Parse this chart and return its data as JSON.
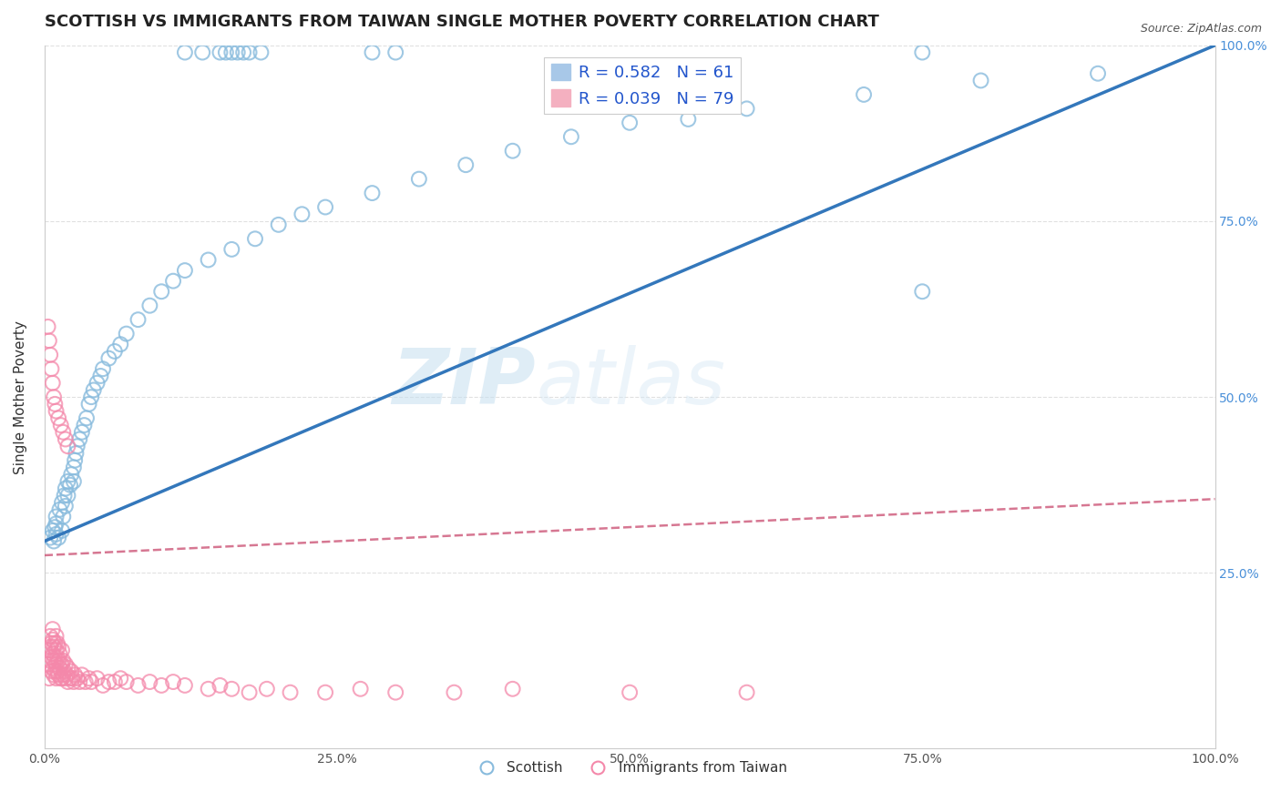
{
  "title": "SCOTTISH VS IMMIGRANTS FROM TAIWAN SINGLE MOTHER POVERTY CORRELATION CHART",
  "source": "Source: ZipAtlas.com",
  "ylabel": "Single Mother Poverty",
  "xlim": [
    0,
    1
  ],
  "ylim": [
    0,
    1
  ],
  "scottish_R": 0.582,
  "scottish_N": 61,
  "taiwan_R": 0.039,
  "taiwan_N": 79,
  "scottish_color": "#88bbdd",
  "taiwan_color": "#f488aa",
  "scottish_line_color": "#3377bb",
  "taiwan_line_color": "#cc5577",
  "background_color": "#ffffff",
  "grid_color": "#dddddd",
  "title_fontsize": 13,
  "axis_label_fontsize": 11,
  "legend_fontsize": 13,
  "scottish_line_x0": 0.0,
  "scottish_line_y0": 0.295,
  "scottish_line_x1": 1.0,
  "scottish_line_y1": 1.0,
  "taiwan_line_x0": 0.0,
  "taiwan_line_y0": 0.275,
  "taiwan_line_x1": 1.0,
  "taiwan_line_y1": 0.355,
  "scottish_x": [
    0.005,
    0.007,
    0.008,
    0.009,
    0.01,
    0.01,
    0.01,
    0.012,
    0.013,
    0.015,
    0.015,
    0.016,
    0.017,
    0.018,
    0.018,
    0.02,
    0.02,
    0.022,
    0.023,
    0.025,
    0.025,
    0.026,
    0.027,
    0.028,
    0.03,
    0.032,
    0.034,
    0.036,
    0.038,
    0.04,
    0.042,
    0.045,
    0.048,
    0.05,
    0.055,
    0.06,
    0.065,
    0.07,
    0.08,
    0.09,
    0.1,
    0.11,
    0.12,
    0.14,
    0.16,
    0.18,
    0.2,
    0.22,
    0.24,
    0.28,
    0.32,
    0.36,
    0.4,
    0.45,
    0.5,
    0.55,
    0.6,
    0.7,
    0.8,
    0.9,
    0.75
  ],
  "scottish_y": [
    0.3,
    0.31,
    0.295,
    0.315,
    0.305,
    0.32,
    0.33,
    0.3,
    0.34,
    0.31,
    0.35,
    0.33,
    0.36,
    0.345,
    0.37,
    0.36,
    0.38,
    0.375,
    0.39,
    0.38,
    0.4,
    0.41,
    0.42,
    0.43,
    0.44,
    0.45,
    0.46,
    0.47,
    0.49,
    0.5,
    0.51,
    0.52,
    0.53,
    0.54,
    0.555,
    0.565,
    0.575,
    0.59,
    0.61,
    0.63,
    0.65,
    0.665,
    0.68,
    0.695,
    0.71,
    0.725,
    0.745,
    0.76,
    0.77,
    0.79,
    0.81,
    0.83,
    0.85,
    0.87,
    0.89,
    0.895,
    0.91,
    0.93,
    0.95,
    0.96,
    0.65
  ],
  "top_scottish_x": [
    0.12,
    0.135,
    0.15,
    0.155,
    0.16,
    0.165,
    0.17,
    0.175,
    0.185,
    0.28,
    0.3,
    0.75
  ],
  "top_scottish_y": [
    0.99,
    0.99,
    0.99,
    0.99,
    0.99,
    0.99,
    0.99,
    0.99,
    0.99,
    0.99,
    0.99,
    0.99
  ],
  "taiwan_x": [
    0.003,
    0.004,
    0.004,
    0.005,
    0.005,
    0.005,
    0.006,
    0.006,
    0.006,
    0.007,
    0.007,
    0.007,
    0.007,
    0.008,
    0.008,
    0.008,
    0.009,
    0.009,
    0.009,
    0.01,
    0.01,
    0.01,
    0.01,
    0.011,
    0.011,
    0.011,
    0.012,
    0.012,
    0.012,
    0.013,
    0.013,
    0.014,
    0.014,
    0.015,
    0.015,
    0.015,
    0.016,
    0.016,
    0.017,
    0.018,
    0.018,
    0.019,
    0.02,
    0.02,
    0.022,
    0.023,
    0.024,
    0.025,
    0.026,
    0.028,
    0.03,
    0.032,
    0.035,
    0.038,
    0.04,
    0.045,
    0.05,
    0.055,
    0.06,
    0.065,
    0.07,
    0.08,
    0.09,
    0.1,
    0.11,
    0.12,
    0.14,
    0.15,
    0.16,
    0.175,
    0.19,
    0.21,
    0.24,
    0.27,
    0.3,
    0.35,
    0.4,
    0.5,
    0.6
  ],
  "taiwan_y": [
    0.12,
    0.14,
    0.1,
    0.125,
    0.145,
    0.16,
    0.11,
    0.13,
    0.15,
    0.115,
    0.135,
    0.155,
    0.17,
    0.105,
    0.125,
    0.145,
    0.11,
    0.13,
    0.15,
    0.1,
    0.12,
    0.14,
    0.16,
    0.11,
    0.13,
    0.15,
    0.105,
    0.125,
    0.145,
    0.115,
    0.135,
    0.1,
    0.12,
    0.1,
    0.12,
    0.14,
    0.105,
    0.125,
    0.11,
    0.1,
    0.12,
    0.105,
    0.095,
    0.115,
    0.1,
    0.11,
    0.1,
    0.095,
    0.105,
    0.1,
    0.095,
    0.105,
    0.095,
    0.1,
    0.095,
    0.1,
    0.09,
    0.095,
    0.095,
    0.1,
    0.095,
    0.09,
    0.095,
    0.09,
    0.095,
    0.09,
    0.085,
    0.09,
    0.085,
    0.08,
    0.085,
    0.08,
    0.08,
    0.085,
    0.08,
    0.08,
    0.085,
    0.08,
    0.08
  ],
  "taiwan_special_x": [
    0.003,
    0.004,
    0.005,
    0.006,
    0.007,
    0.008,
    0.009,
    0.01,
    0.012,
    0.014,
    0.016,
    0.018,
    0.02
  ],
  "taiwan_special_y": [
    0.6,
    0.58,
    0.56,
    0.54,
    0.52,
    0.5,
    0.49,
    0.48,
    0.47,
    0.46,
    0.45,
    0.44,
    0.43
  ]
}
